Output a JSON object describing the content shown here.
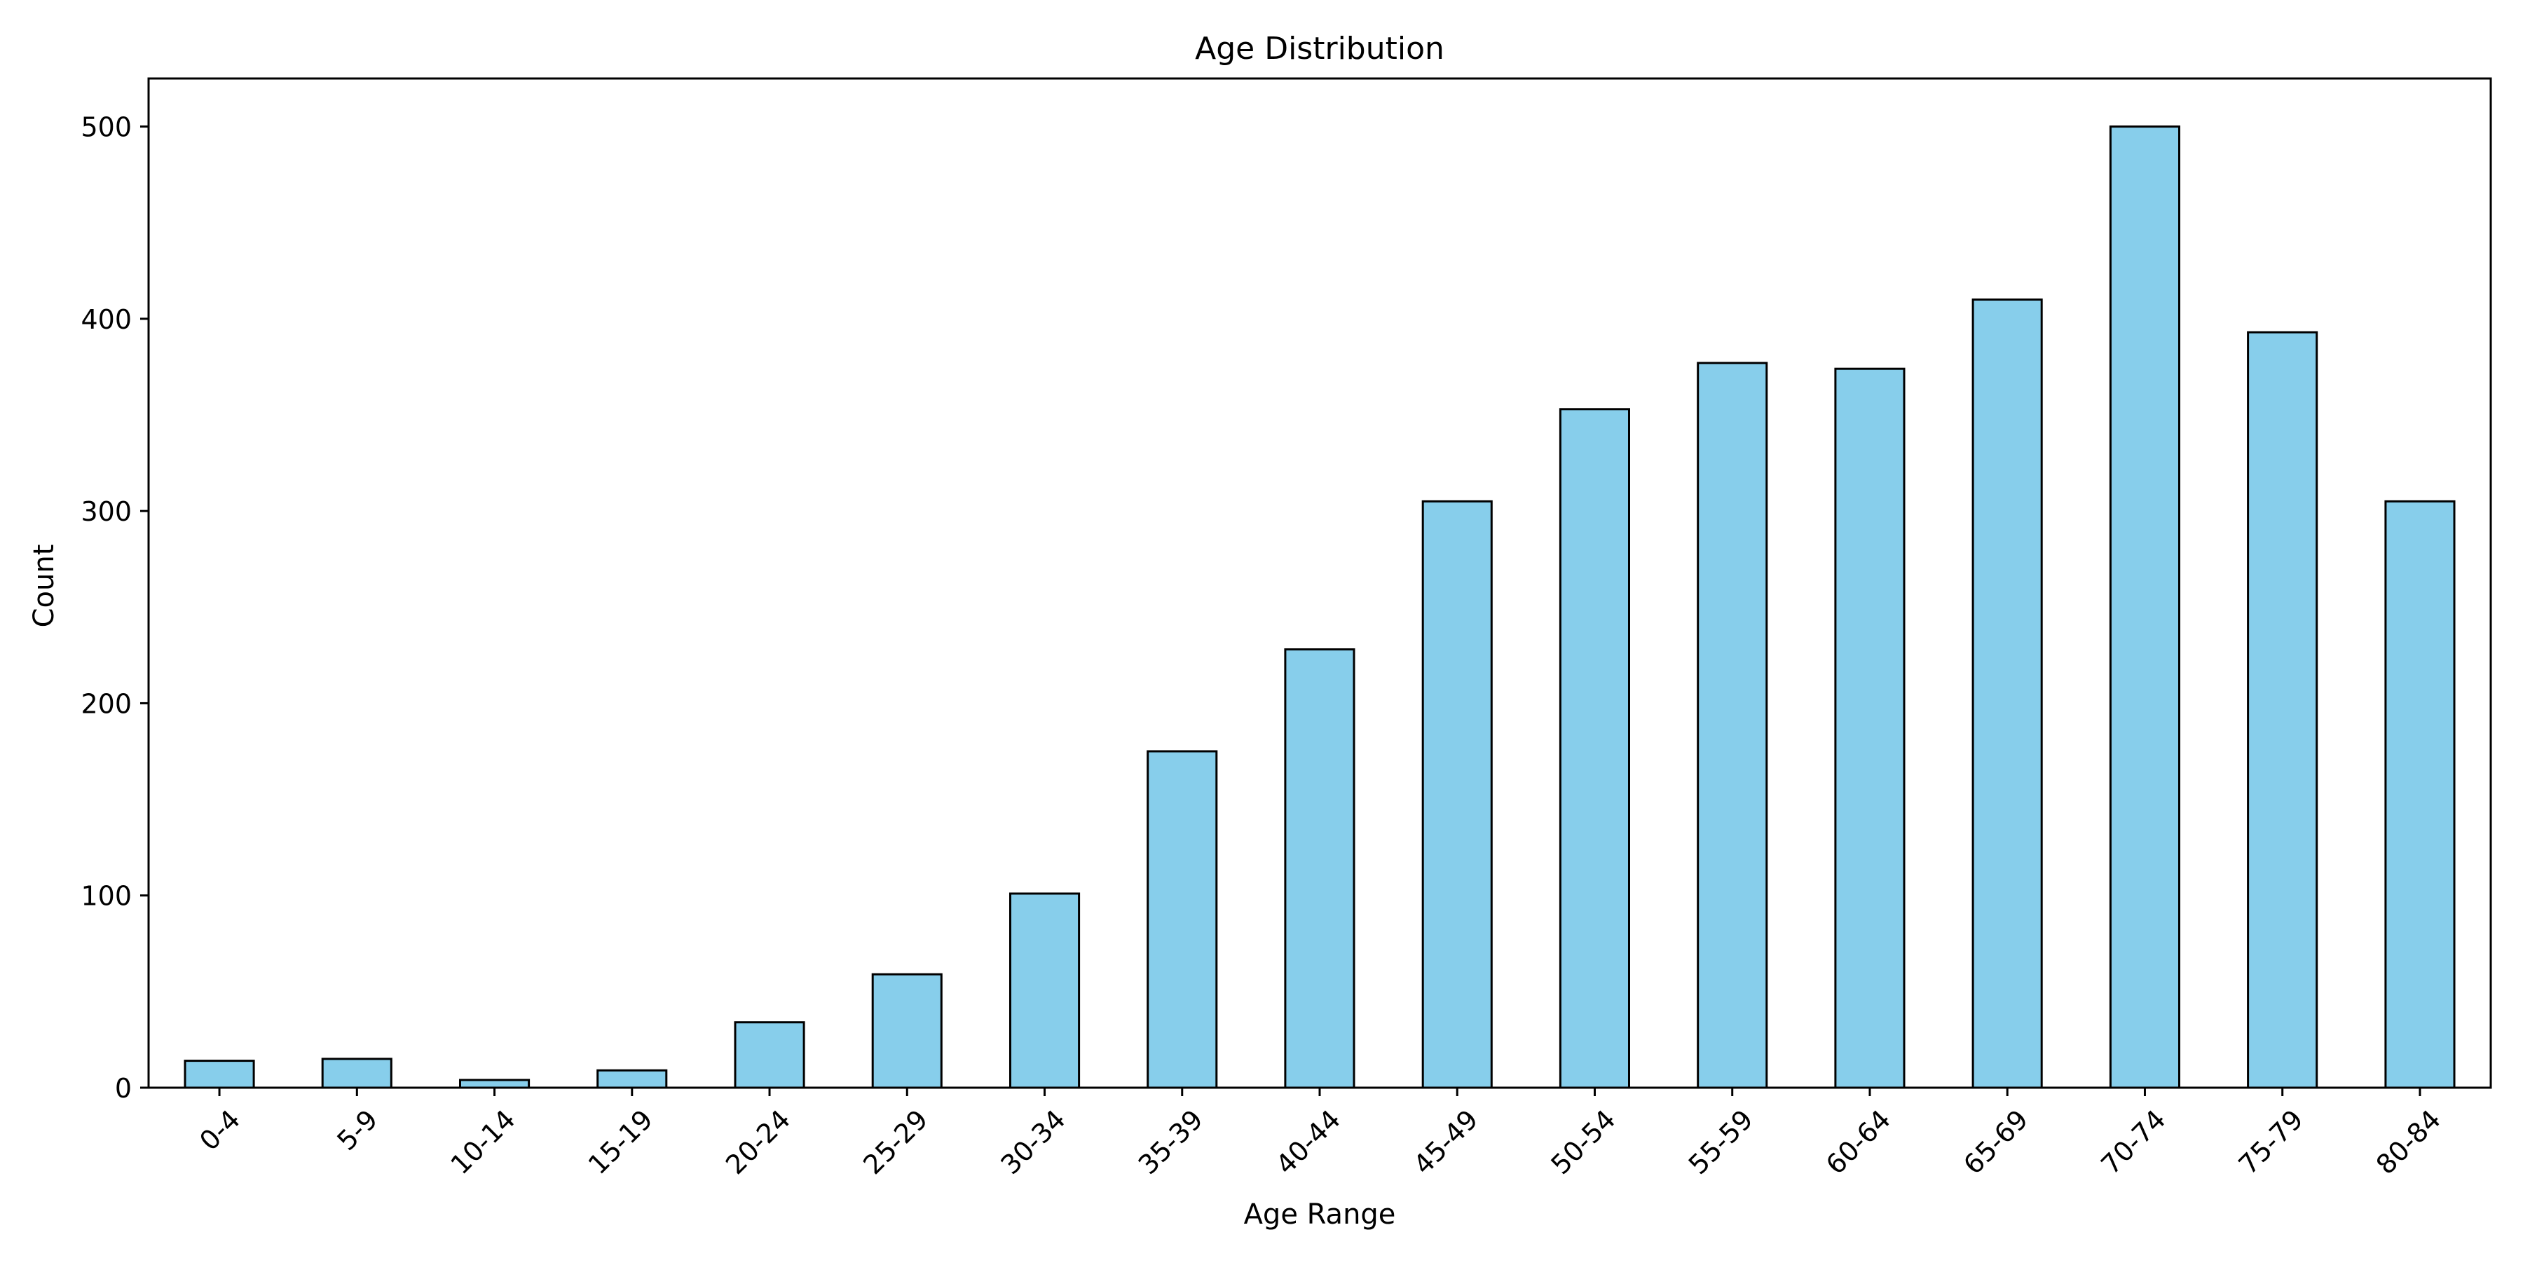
{
  "chart_data": {
    "type": "bar",
    "title": "Age Distribution",
    "xlabel": "Age Range",
    "ylabel": "Count",
    "categories": [
      "0-4",
      "5-9",
      "10-14",
      "15-19",
      "20-24",
      "25-29",
      "30-34",
      "35-39",
      "40-44",
      "45-49",
      "50-54",
      "55-59",
      "60-64",
      "65-69",
      "70-74",
      "75-79",
      "80-84"
    ],
    "values": [
      14,
      15,
      4,
      9,
      34,
      59,
      101,
      175,
      228,
      305,
      353,
      377,
      374,
      410,
      500,
      393,
      305
    ],
    "ylim": [
      0,
      525
    ],
    "yticks": [
      0,
      100,
      200,
      300,
      400,
      500
    ],
    "bar_color": "#87CEEB",
    "edge_color": "#000000",
    "grid": false,
    "legend": false,
    "x_tick_rotation": 45
  }
}
